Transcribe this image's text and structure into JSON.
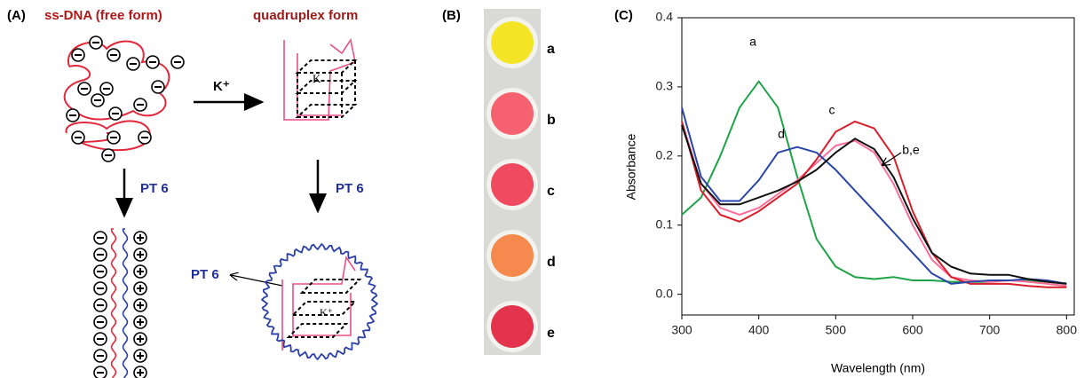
{
  "panel_a": {
    "label": "(A)",
    "free_form_title": "ss-DNA (free form)",
    "quadruplex_title": "quadruplex  form",
    "arrow_label": "K⁺",
    "ion_label": "K",
    "ion_label_complex": "K⁺",
    "polymer_labels": [
      "PT 6",
      "PT 6",
      "PT 6"
    ]
  },
  "panel_b": {
    "label": "(B)",
    "wells": [
      "a",
      "b",
      "c",
      "d",
      "e"
    ]
  },
  "chart_data": {
    "type": "line",
    "panel_label": "(C)",
    "xlabel": "Wavelength (nm)",
    "ylabel": "Absorbance",
    "x": [
      300,
      325,
      350,
      375,
      400,
      425,
      450,
      475,
      500,
      525,
      550,
      575,
      600,
      625,
      650,
      675,
      700,
      725,
      750,
      775,
      800
    ],
    "series": [
      {
        "color": "#1fa347",
        "values": [
          0.115,
          0.14,
          0.2,
          0.27,
          0.308,
          0.27,
          0.17,
          0.08,
          0.04,
          0.025,
          0.022,
          0.025,
          0.02,
          0.02,
          0.018,
          0.018,
          0.018,
          0.02,
          0.02,
          0.018,
          0.016
        ]
      },
      {
        "color": "#ff6f9c",
        "values": [
          0.25,
          0.16,
          0.125,
          0.115,
          0.125,
          0.145,
          0.165,
          0.19,
          0.215,
          0.222,
          0.205,
          0.16,
          0.1,
          0.05,
          0.025,
          0.02,
          0.018,
          0.02,
          0.018,
          0.015,
          0.012
        ]
      },
      {
        "color": "#d81f2a",
        "values": [
          0.25,
          0.15,
          0.115,
          0.105,
          0.12,
          0.14,
          0.16,
          0.195,
          0.235,
          0.25,
          0.24,
          0.2,
          0.12,
          0.06,
          0.025,
          0.015,
          0.015,
          0.015,
          0.012,
          0.01,
          0.01
        ]
      },
      {
        "color": "#2a45a8",
        "values": [
          0.27,
          0.17,
          0.135,
          0.135,
          0.165,
          0.205,
          0.213,
          0.205,
          0.18,
          0.15,
          0.12,
          0.09,
          0.06,
          0.03,
          0.015,
          0.018,
          0.02,
          0.02,
          0.022,
          0.02,
          0.015
        ]
      },
      {
        "color": "#111111",
        "values": [
          0.245,
          0.16,
          0.13,
          0.13,
          0.14,
          0.15,
          0.163,
          0.18,
          0.205,
          0.225,
          0.21,
          0.17,
          0.11,
          0.06,
          0.04,
          0.03,
          0.028,
          0.028,
          0.022,
          0.018,
          0.015
        ]
      }
    ],
    "curve_labels": [
      "a",
      "d",
      "c",
      "b,e"
    ],
    "xlim": [
      300,
      810
    ],
    "ylim": [
      -0.03,
      0.4
    ],
    "xticks": [
      300,
      400,
      500,
      600,
      700,
      800
    ],
    "yticks": [
      {
        "value": 0,
        "label": "0.0"
      },
      0.1,
      0.2,
      0.3,
      0.4
    ]
  }
}
